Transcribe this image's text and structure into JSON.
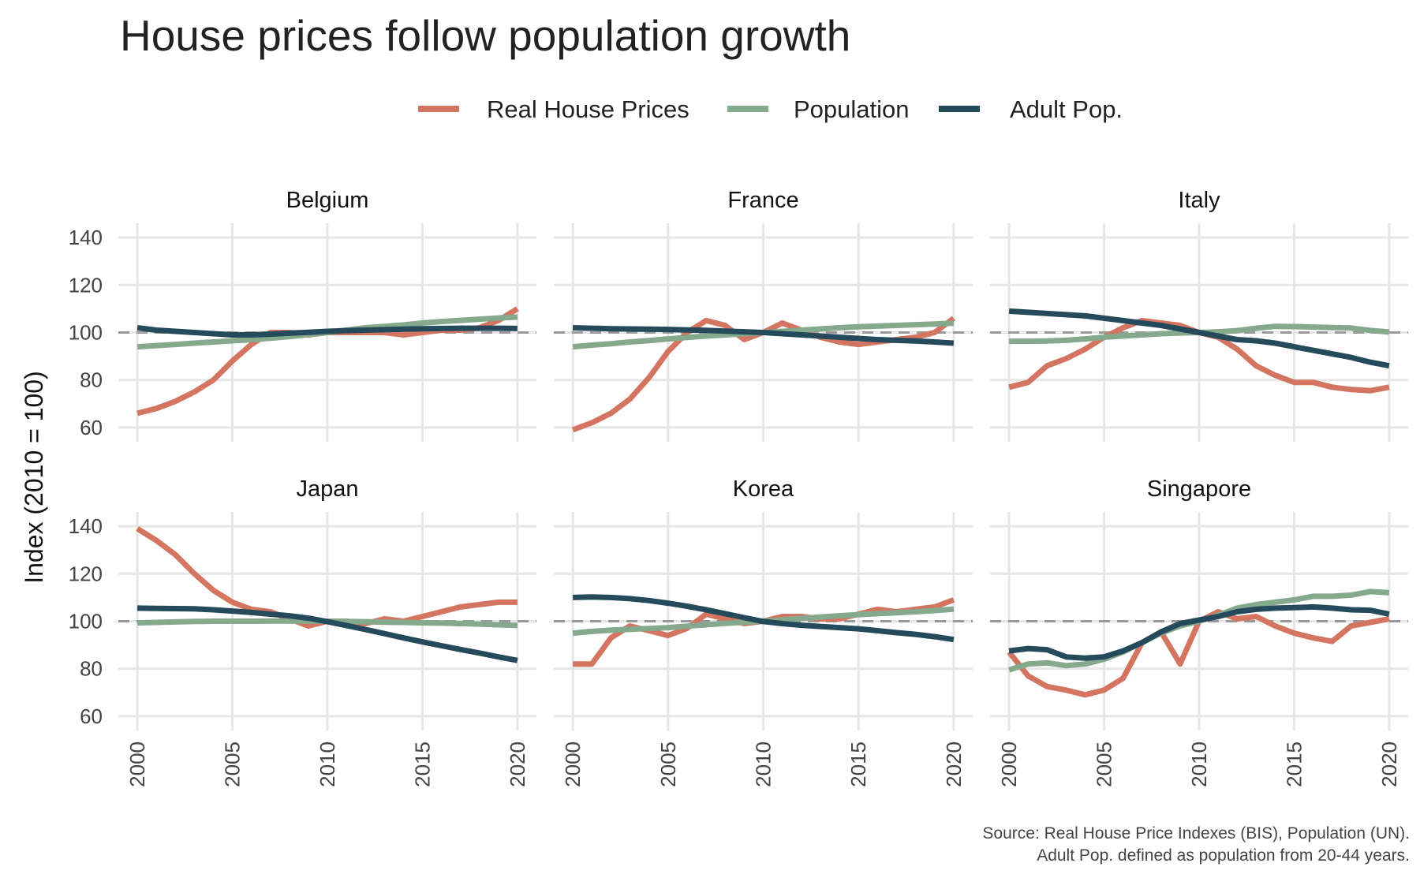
{
  "chart_data": {
    "type": "line",
    "title": "House prices follow population growth",
    "ylabel": "Index (2010 = 100)",
    "xlabel": "",
    "ylim": [
      54,
      146
    ],
    "xlim": [
      1999,
      2021
    ],
    "yticks": [
      60,
      80,
      100,
      120,
      140
    ],
    "xticks": [
      2000,
      2005,
      2010,
      2015,
      2020
    ],
    "reference_line": 100,
    "grid": true,
    "legend_position": "top",
    "legend": [
      {
        "name": "Real House Prices",
        "color": "#d47561"
      },
      {
        "name": "Population",
        "color": "#84a98c"
      },
      {
        "name": "Adult Pop.",
        "color": "#254a5c"
      }
    ],
    "caption": [
      "Source: Real House Price Indexes (BIS), Population (UN).",
      "Adult Pop. defined as population from 20-44 years."
    ],
    "x": [
      2000,
      2001,
      2002,
      2003,
      2004,
      2005,
      2006,
      2007,
      2008,
      2009,
      2010,
      2011,
      2012,
      2013,
      2014,
      2015,
      2016,
      2017,
      2018,
      2019,
      2020
    ],
    "panels": [
      {
        "name": "Belgium",
        "series": [
          {
            "name": "Real House Prices",
            "values": [
              66,
              68,
              71,
              75,
              80,
              88,
              95,
              100,
              100,
              99,
              100,
              100,
              100,
              100,
              99,
              100,
              101,
              101,
              102,
              105,
              110
            ]
          },
          {
            "name": "Population",
            "values": [
              94,
              94.5,
              95,
              95.5,
              96,
              96.5,
              97,
              97.6,
              98.3,
              99.1,
              100,
              101,
              102,
              102.6,
              103.2,
              104,
              104.6,
              105.1,
              105.6,
              106.1,
              106.5
            ]
          },
          {
            "name": "Adult Pop.",
            "values": [
              102,
              101,
              100.5,
              100,
              99.5,
              99,
              99,
              99.3,
              99.7,
              100.1,
              100.5,
              100.8,
              101,
              101.2,
              101.4,
              101.6,
              101.7,
              101.8,
              101.8,
              101.8,
              101.7
            ]
          }
        ]
      },
      {
        "name": "France",
        "series": [
          {
            "name": "Real House Prices",
            "values": [
              59,
              62,
              66,
              72,
              81,
              92,
              100,
              105,
              103,
              97,
              100,
              104,
              101,
              98,
              96,
              95,
              96,
              97,
              98,
              100,
              106
            ]
          },
          {
            "name": "Population",
            "values": [
              94,
              94.7,
              95.3,
              96,
              96.6,
              97.3,
              97.9,
              98.5,
              99,
              99.5,
              100,
              100.5,
              101,
              101.5,
              102,
              102.4,
              102.7,
              103,
              103.3,
              103.6,
              103.9
            ]
          },
          {
            "name": "Adult Pop.",
            "values": [
              102,
              101.8,
              101.6,
              101.5,
              101.4,
              101.3,
              101.1,
              100.9,
              100.6,
              100.3,
              100,
              99.5,
              99,
              98.5,
              98,
              97.5,
              97,
              96.7,
              96.4,
              96,
              95.5
            ]
          }
        ]
      },
      {
        "name": "Italy",
        "series": [
          {
            "name": "Real House Prices",
            "values": [
              77,
              79,
              86,
              89,
              93,
              98,
              102,
              105,
              104,
              103,
              100,
              98,
              93,
              86,
              82,
              79,
              79,
              77,
              76,
              75.5,
              77
            ]
          },
          {
            "name": "Population",
            "values": [
              96.3,
              96.3,
              96.4,
              96.7,
              97.3,
              98,
              98.5,
              99,
              99.5,
              99.8,
              100,
              100.3,
              100.8,
              101.8,
              102.6,
              102.5,
              102.3,
              102.1,
              101.9,
              100.9,
              100.2
            ]
          },
          {
            "name": "Adult Pop.",
            "values": [
              109,
              108.5,
              108,
              107.5,
              107,
              106,
              105,
              104,
              103,
              101.5,
              100,
              98.5,
              97,
              96.5,
              95.5,
              94,
              92.5,
              91,
              89.5,
              87.5,
              86
            ]
          }
        ]
      },
      {
        "name": "Japan",
        "series": [
          {
            "name": "Real House Prices",
            "values": [
              139,
              134,
              128,
              120,
              113,
              108,
              105,
              104,
              101,
              98,
              100,
              100,
              99,
              101,
              100,
              102,
              104,
              106,
              107,
              108,
              108
            ]
          },
          {
            "name": "Population",
            "values": [
              99.3,
              99.5,
              99.7,
              99.9,
              100,
              100,
              100,
              100.1,
              100.1,
              100.1,
              100,
              99.9,
              99.8,
              99.6,
              99.5,
              99.3,
              99.2,
              99,
              98.8,
              98.5,
              98.2
            ]
          },
          {
            "name": "Adult Pop.",
            "values": [
              105.5,
              105.4,
              105.3,
              105.2,
              104.8,
              104.3,
              103.7,
              103,
              102.3,
              101.3,
              99.8,
              98.2,
              96.5,
              94.8,
              93,
              91.3,
              89.7,
              88.1,
              86.6,
              85,
              83.5
            ]
          }
        ]
      },
      {
        "name": "Korea",
        "series": [
          {
            "name": "Real House Prices",
            "values": [
              82,
              82,
              93,
              98,
              96,
              94,
              97,
              103,
              101,
              99,
              100,
              102,
              102,
              101,
              101,
              103,
              105,
              104,
              105,
              106,
              109
            ]
          },
          {
            "name": "Population",
            "values": [
              95,
              95.7,
              96.2,
              96.6,
              96.9,
              97.3,
              97.9,
              98.5,
              99.1,
              99.6,
              100,
              100.6,
              101.2,
              101.8,
              102.3,
              102.8,
              103.2,
              103.6,
              104,
              104.5,
              105.1
            ]
          },
          {
            "name": "Adult Pop.",
            "values": [
              110,
              110.2,
              110,
              109.5,
              108.7,
              107.6,
              106.3,
              104.8,
              103.2,
              101.5,
              99.9,
              99,
              98.3,
              97.8,
              97.3,
              96.8,
              96,
              95.2,
              94.5,
              93.5,
              92.3
            ]
          }
        ]
      },
      {
        "name": "Singapore",
        "series": [
          {
            "name": "Real House Prices",
            "values": [
              87,
              77,
              72.5,
              71,
              69,
              71,
              76,
              91,
              95.5,
              82,
              100,
              104,
              101,
              102,
              98,
              95,
              93,
              91.5,
              98,
              99.5,
              101
            ]
          },
          {
            "name": "Population",
            "values": [
              79.5,
              82,
              82.5,
              81.3,
              82,
              84,
              87,
              91,
              95,
              98,
              100,
              102.5,
              105.5,
              107,
              108,
              109,
              110.5,
              110.5,
              111,
              112.5,
              112
            ]
          },
          {
            "name": "Adult Pop.",
            "values": [
              87.5,
              88.5,
              88,
              85,
              84.5,
              85,
              87.5,
              91,
              95.5,
              99,
              100.5,
              102,
              104,
              105,
              105.5,
              105.7,
              106,
              105.5,
              104.8,
              104.6,
              103
            ]
          }
        ]
      }
    ]
  }
}
